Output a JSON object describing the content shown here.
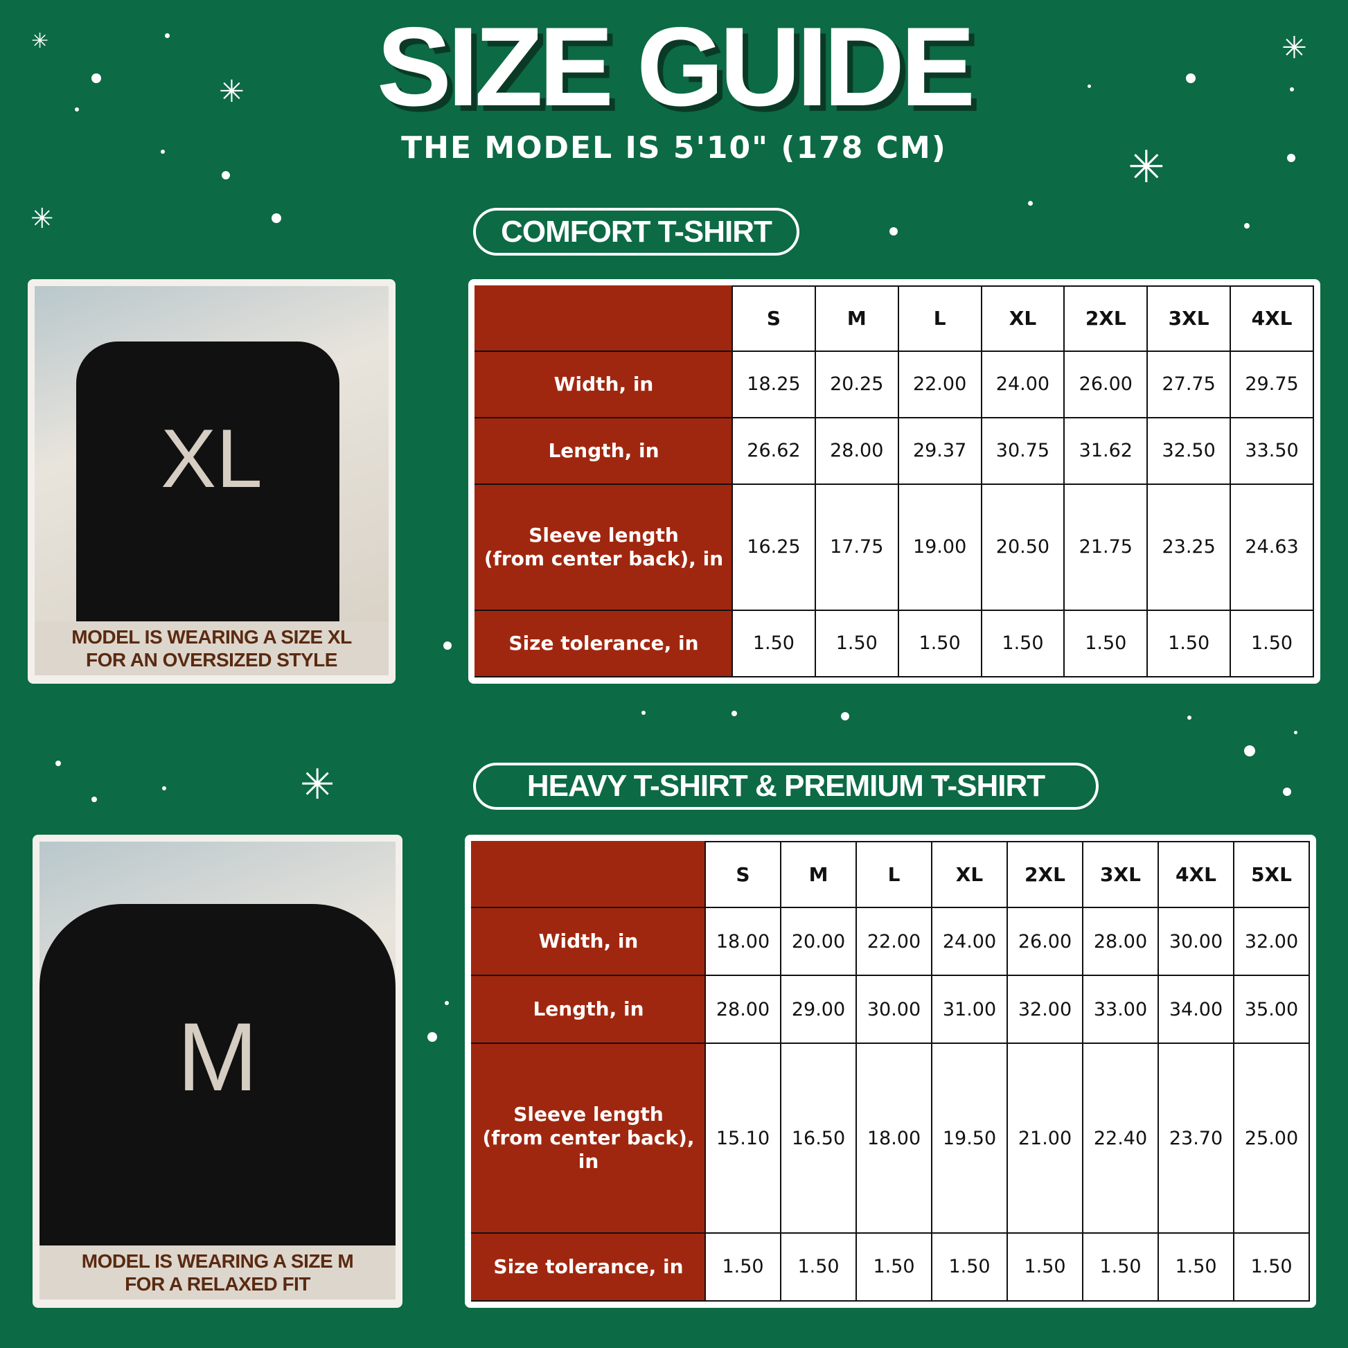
{
  "header": {
    "title": "SIZE GUIDE",
    "subtitle": "THE MODEL IS 5'10\" (178 CM)"
  },
  "colors": {
    "background": "#0c6a45",
    "label_cell": "#a0270f",
    "caption_bg": "#ddd6cd",
    "caption_text": "#5a2a10"
  },
  "comfort": {
    "heading": "COMFORT T-SHIRT",
    "photo": {
      "shirt_size_print": "XL",
      "caption_line1": "MODEL IS WEARING A SIZE XL",
      "caption_line2": "FOR AN OVERSIZED STYLE"
    },
    "sizes": [
      "S",
      "M",
      "L",
      "XL",
      "2XL",
      "3XL",
      "4XL"
    ],
    "rows": [
      {
        "label": "Width, in",
        "values": [
          "18.25",
          "20.25",
          "22.00",
          "24.00",
          "26.00",
          "27.75",
          "29.75"
        ]
      },
      {
        "label": "Length, in",
        "values": [
          "26.62",
          "28.00",
          "29.37",
          "30.75",
          "31.62",
          "32.50",
          "33.50"
        ]
      },
      {
        "label": "Sleeve length",
        "label2": "(from center back), in",
        "values": [
          "16.25",
          "17.75",
          "19.00",
          "20.50",
          "21.75",
          "23.25",
          "24.63"
        ]
      },
      {
        "label": "Size tolerance, in",
        "values": [
          "1.50",
          "1.50",
          "1.50",
          "1.50",
          "1.50",
          "1.50",
          "1.50"
        ]
      }
    ]
  },
  "heavy": {
    "heading": "HEAVY T-SHIRT & PREMIUM T-SHIRT",
    "photo": {
      "shirt_size_print": "M",
      "caption_line1": "MODEL IS WEARING A SIZE M",
      "caption_line2": "FOR A RELAXED FIT"
    },
    "sizes": [
      "S",
      "M",
      "L",
      "XL",
      "2XL",
      "3XL",
      "4XL",
      "5XL"
    ],
    "rows": [
      {
        "label": "Width, in",
        "values": [
          "18.00",
          "20.00",
          "22.00",
          "24.00",
          "26.00",
          "28.00",
          "30.00",
          "32.00"
        ]
      },
      {
        "label": "Length, in",
        "values": [
          "28.00",
          "29.00",
          "30.00",
          "31.00",
          "32.00",
          "33.00",
          "34.00",
          "35.00"
        ]
      },
      {
        "label": "Sleeve length",
        "label2": "(from center back), in",
        "values": [
          "15.10",
          "16.50",
          "18.00",
          "19.50",
          "21.00",
          "22.40",
          "23.70",
          "25.00"
        ]
      },
      {
        "label": "Size tolerance, in",
        "values": [
          "1.50",
          "1.50",
          "1.50",
          "1.50",
          "1.50",
          "1.50",
          "1.50",
          "1.50"
        ]
      }
    ]
  }
}
